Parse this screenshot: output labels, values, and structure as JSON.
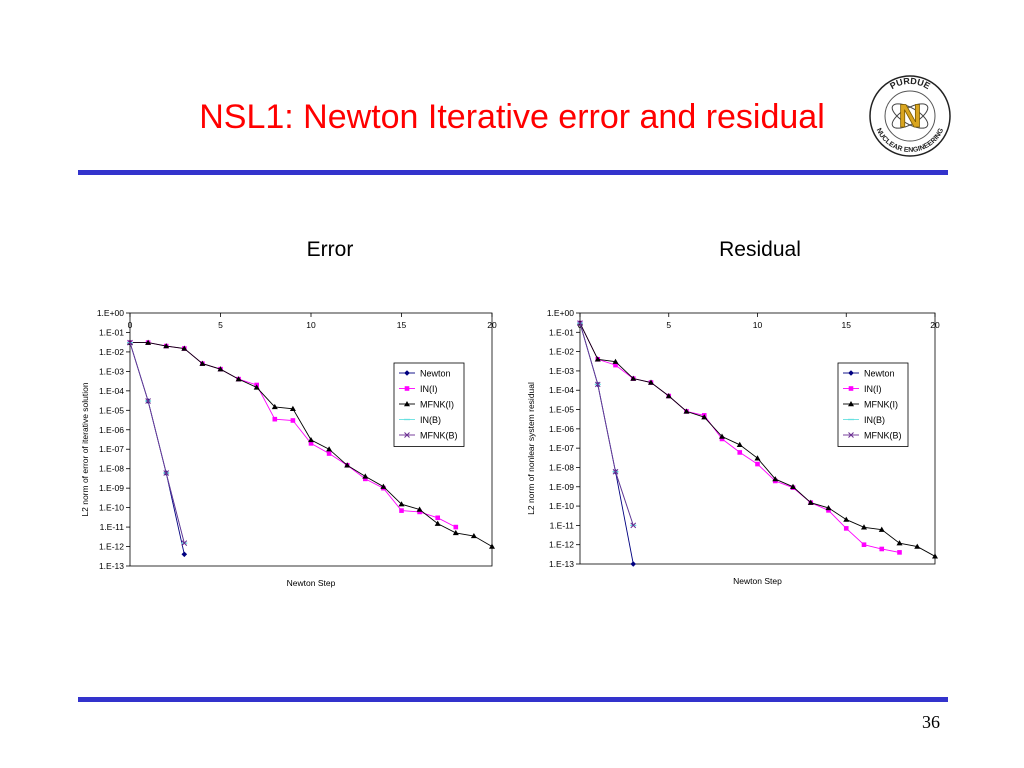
{
  "slide": {
    "title": "NSL1: Newton Iterative error and residual",
    "page_number": "36",
    "rule_color": "#3333cc",
    "title_color": "#ff0000"
  },
  "logo": {
    "top_text": "PURDUE",
    "bottom_text": "NUCLEAR ENGINEERING",
    "letter": "N"
  },
  "chart_data": [
    {
      "type": "line",
      "title": "Error",
      "xlabel": "Newton Step",
      "ylabel": "L2 norm of error of iterative solution",
      "xlim": [
        0,
        20
      ],
      "x_ticks": [
        0,
        5,
        10,
        15,
        20
      ],
      "y_log": true,
      "ylim": [
        1e-13,
        1
      ],
      "y_tick_labels": [
        "1.E+00",
        "1.E-01",
        "1.E-02",
        "1.E-03",
        "1.E-04",
        "1.E-05",
        "1.E-06",
        "1.E-07",
        "1.E-08",
        "1.E-09",
        "1.E-10",
        "1.E-11",
        "1.E-12",
        "1.E-13"
      ],
      "legend_position": "right",
      "series": [
        {
          "name": "Newton",
          "color": "#000080",
          "marker": "diamond",
          "x": [
            0,
            1,
            2,
            3
          ],
          "y": [
            0.03,
            3e-05,
            6e-09,
            4e-13
          ]
        },
        {
          "name": "IN(I)",
          "color": "#ff00ff",
          "marker": "square",
          "x": [
            0,
            1,
            2,
            3,
            4,
            5,
            6,
            7,
            8,
            9,
            10,
            11,
            12,
            13,
            14,
            15,
            16,
            17,
            18
          ],
          "y": [
            0.03,
            0.03,
            0.02,
            0.015,
            0.0025,
            0.0013,
            0.0004,
            0.0002,
            3.5e-06,
            3e-06,
            2e-07,
            6e-08,
            1.5e-08,
            3e-09,
            1e-09,
            7e-11,
            6e-11,
            3e-11,
            1e-11
          ]
        },
        {
          "name": "MFNK(I)",
          "color": "#000000",
          "marker": "triangle",
          "x": [
            0,
            1,
            2,
            3,
            4,
            5,
            6,
            7,
            8,
            9,
            10,
            11,
            12,
            13,
            14,
            15,
            16,
            17,
            18,
            19,
            20
          ],
          "y": [
            0.03,
            0.03,
            0.02,
            0.015,
            0.0025,
            0.0013,
            0.0004,
            0.00015,
            1.5e-05,
            1.2e-05,
            3e-07,
            1e-07,
            1.5e-08,
            4e-09,
            1.2e-09,
            1.5e-10,
            8e-11,
            1.5e-11,
            5e-12,
            3.5e-12,
            1e-12
          ]
        },
        {
          "name": "IN(B)",
          "color": "#66e0e0",
          "marker": "dash",
          "x": [
            0,
            1,
            2,
            3
          ],
          "y": [
            0.03,
            3e-05,
            6e-09,
            1.5e-12
          ]
        },
        {
          "name": "MFNK(B)",
          "color": "#6a2c91",
          "marker": "x",
          "x": [
            0,
            1,
            2,
            3
          ],
          "y": [
            0.03,
            3e-05,
            6e-09,
            1.5e-12
          ]
        }
      ]
    },
    {
      "type": "line",
      "title": "Residual",
      "xlabel": "Newton Step",
      "ylabel": "L2 norm of nonlear system residual",
      "xlim": [
        0,
        20
      ],
      "x_ticks": [
        0,
        5,
        10,
        15,
        20
      ],
      "y_log": true,
      "ylim": [
        1e-13,
        1
      ],
      "y_tick_labels": [
        "1.E+00",
        "1.E-01",
        "1.E-02",
        "1.E-03",
        "1.E-04",
        "1.E-05",
        "1.E-06",
        "1.E-07",
        "1.E-08",
        "1.E-09",
        "1.E-10",
        "1.E-11",
        "1.E-12",
        "1.E-13"
      ],
      "legend_position": "right",
      "series": [
        {
          "name": "Newton",
          "color": "#000080",
          "marker": "diamond",
          "x": [
            0,
            1,
            2,
            3
          ],
          "y": [
            0.3,
            0.0002,
            6e-09,
            1e-13
          ]
        },
        {
          "name": "IN(I)",
          "color": "#ff00ff",
          "marker": "square",
          "x": [
            0,
            1,
            2,
            3,
            4,
            5,
            6,
            7,
            8,
            9,
            10,
            11,
            12,
            13,
            14,
            15,
            16,
            17,
            18
          ],
          "y": [
            0.3,
            0.004,
            0.002,
            0.0004,
            0.00025,
            5e-05,
            8e-06,
            5e-06,
            3e-07,
            6e-08,
            1.5e-08,
            2e-09,
            9e-10,
            1.5e-10,
            6e-11,
            7e-12,
            1e-12,
            6e-13,
            4e-13
          ]
        },
        {
          "name": "MFNK(I)",
          "color": "#000000",
          "marker": "triangle",
          "x": [
            0,
            1,
            2,
            3,
            4,
            5,
            6,
            7,
            8,
            9,
            10,
            11,
            12,
            13,
            14,
            15,
            16,
            17,
            18,
            19,
            20
          ],
          "y": [
            0.3,
            0.004,
            0.003,
            0.0004,
            0.00025,
            5e-05,
            8e-06,
            4e-06,
            4e-07,
            1.5e-07,
            3e-08,
            2.5e-09,
            1e-09,
            1.5e-10,
            8e-11,
            2e-11,
            8e-12,
            6e-12,
            1.2e-12,
            8e-13,
            2.5e-13
          ]
        },
        {
          "name": "IN(B)",
          "color": "#66e0e0",
          "marker": "dash",
          "x": [
            0,
            1,
            2,
            3
          ],
          "y": [
            0.3,
            0.0002,
            6e-09,
            1e-11
          ]
        },
        {
          "name": "MFNK(B)",
          "color": "#6a2c91",
          "marker": "x",
          "x": [
            0,
            1,
            2,
            3
          ],
          "y": [
            0.3,
            0.0002,
            6e-09,
            1e-11
          ]
        }
      ]
    }
  ]
}
